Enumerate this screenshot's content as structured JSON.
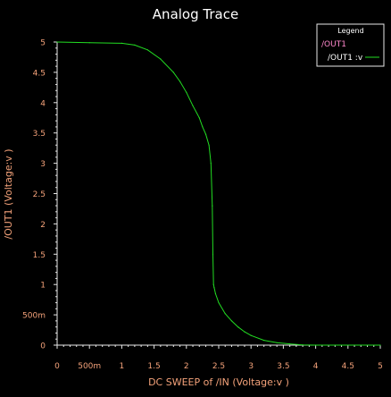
{
  "colors": {
    "background": "#000000",
    "axis": "#e8e8e8",
    "tick_label": "#f4a27a",
    "axis_label": "#f4a27a",
    "title": "#ffffff",
    "trace": "#22dd22",
    "legend_title": "#ffffff",
    "legend_group": "#ff88cc",
    "legend_entry": "#ffffff"
  },
  "chart_data": {
    "type": "line",
    "title": "Analog Trace",
    "xlabel": "DC SWEEP of /IN (Voltage:v )",
    "ylabel": "/OUT1 (Voltage:v )",
    "xlim": [
      0,
      5
    ],
    "ylim": [
      0,
      5
    ],
    "grid": false,
    "legend_position": "top-right",
    "x_tick_labels": [
      "0",
      "500m",
      "1",
      "1.5",
      "2",
      "2.5",
      "3",
      "3.5",
      "4",
      "4.5",
      "5"
    ],
    "y_tick_labels": [
      "0",
      "500m",
      "1",
      "1.5",
      "2",
      "2.5",
      "3",
      "3.5",
      "4",
      "4.5",
      "5"
    ],
    "legend": {
      "title": "Legend",
      "group": "/OUT1",
      "entries": [
        "/OUT1 :v"
      ]
    },
    "series": [
      {
        "name": "/OUT1 :v",
        "x": [
          0,
          0.5,
          1.0,
          1.2,
          1.4,
          1.6,
          1.8,
          1.9,
          2.0,
          2.1,
          2.2,
          2.25,
          2.3,
          2.35,
          2.38,
          2.4,
          2.41,
          2.42,
          2.43,
          2.45,
          2.5,
          2.6,
          2.7,
          2.8,
          2.9,
          3.0,
          3.2,
          3.4,
          3.6,
          3.8,
          4.0,
          5.0
        ],
        "y": [
          5.0,
          4.99,
          4.98,
          4.95,
          4.87,
          4.72,
          4.5,
          4.35,
          4.17,
          3.95,
          3.75,
          3.6,
          3.48,
          3.3,
          3.0,
          2.3,
          1.5,
          1.0,
          0.95,
          0.85,
          0.7,
          0.52,
          0.4,
          0.3,
          0.22,
          0.16,
          0.08,
          0.04,
          0.02,
          0.005,
          0.0,
          0.0
        ]
      }
    ]
  }
}
